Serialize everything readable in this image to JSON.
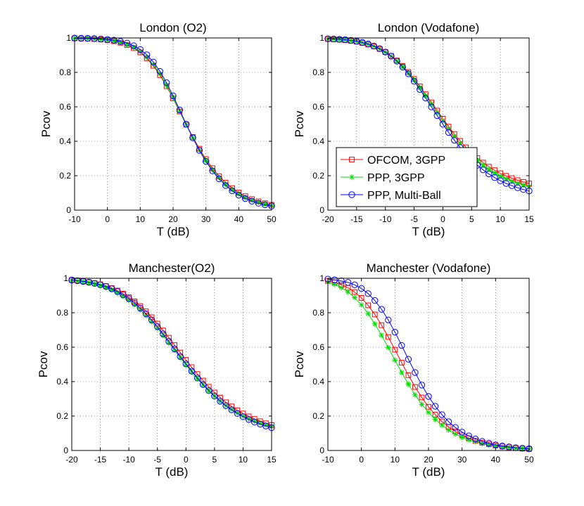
{
  "chart_data": [
    {
      "type": "line",
      "title": "London (O2)",
      "xlabel": "T (dB)",
      "ylabel": "Pcov",
      "xlim": [
        -10,
        50
      ],
      "ylim": [
        0,
        1
      ],
      "xticks": [
        "-10",
        "0",
        "10",
        "20",
        "30",
        "40",
        "50"
      ],
      "yticks": [
        "0",
        "0.2",
        "0.4",
        "0.6",
        "0.8",
        "1"
      ],
      "grid": true,
      "x": [
        -10,
        -8,
        -6,
        -4,
        -2,
        0,
        2,
        4,
        6,
        8,
        10,
        12,
        14,
        16,
        18,
        20,
        22,
        24,
        26,
        28,
        30,
        32,
        34,
        36,
        38,
        40,
        42,
        44,
        46,
        48,
        50
      ],
      "series": [
        {
          "name": "OFCOM, 3GPP",
          "color": "#ff0000",
          "marker": "square",
          "values": [
            0.998,
            0.997,
            0.996,
            0.994,
            0.991,
            0.987,
            0.981,
            0.972,
            0.959,
            0.941,
            0.916,
            0.882,
            0.838,
            0.784,
            0.72,
            0.649,
            0.573,
            0.496,
            0.425,
            0.357,
            0.296,
            0.244,
            0.197,
            0.16,
            0.128,
            0.102,
            0.081,
            0.064,
            0.051,
            0.04,
            0.031
          ]
        },
        {
          "name": "PPP, 3GPP",
          "color": "#00dd00",
          "marker": "asterisk",
          "values": [
            0.998,
            0.997,
            0.996,
            0.994,
            0.991,
            0.987,
            0.982,
            0.974,
            0.962,
            0.945,
            0.921,
            0.888,
            0.845,
            0.791,
            0.726,
            0.653,
            0.575,
            0.496,
            0.42,
            0.35,
            0.288,
            0.234,
            0.188,
            0.15,
            0.118,
            0.093,
            0.073,
            0.057,
            0.045,
            0.035,
            0.027
          ]
        },
        {
          "name": "PPP, Multi-Ball",
          "color": "#0000ff",
          "marker": "circle",
          "values": [
            0.999,
            0.998,
            0.997,
            0.996,
            0.994,
            0.991,
            0.987,
            0.98,
            0.97,
            0.955,
            0.933,
            0.902,
            0.86,
            0.806,
            0.74,
            0.664,
            0.582,
            0.499,
            0.42,
            0.347,
            0.283,
            0.228,
            0.182,
            0.143,
            0.112,
            0.087,
            0.067,
            0.052,
            0.04,
            0.031,
            0.024
          ]
        }
      ]
    },
    {
      "type": "line",
      "title": "London (Vodafone)",
      "xlabel": "T (dB)",
      "ylabel": "Pcov",
      "xlim": [
        -20,
        15
      ],
      "ylim": [
        0,
        1
      ],
      "xticks": [
        "-20",
        "-15",
        "-10",
        "-5",
        "0",
        "5",
        "10",
        "15"
      ],
      "yticks": [
        "0",
        "0.2",
        "0.4",
        "0.6",
        "0.8",
        "1"
      ],
      "grid": true,
      "legend": "center-left",
      "x": [
        -20,
        -19,
        -18,
        -17,
        -16,
        -15,
        -14,
        -13,
        -12,
        -11,
        -10,
        -9,
        -8,
        -7,
        -6,
        -5,
        -4,
        -3,
        -2,
        -1,
        0,
        1,
        2,
        3,
        4,
        5,
        6,
        7,
        8,
        9,
        10,
        11,
        12,
        13,
        14,
        15
      ],
      "series": [
        {
          "name": "OFCOM, 3GPP",
          "color": "#ff0000",
          "marker": "square",
          "values": [
            0.994,
            0.992,
            0.99,
            0.987,
            0.983,
            0.978,
            0.971,
            0.962,
            0.951,
            0.936,
            0.918,
            0.896,
            0.869,
            0.838,
            0.802,
            0.762,
            0.719,
            0.673,
            0.626,
            0.578,
            0.531,
            0.485,
            0.442,
            0.402,
            0.365,
            0.332,
            0.302,
            0.276,
            0.252,
            0.232,
            0.214,
            0.199,
            0.186,
            0.174,
            0.164,
            0.155
          ]
        },
        {
          "name": "PPP, 3GPP",
          "color": "#00dd00",
          "marker": "asterisk",
          "values": [
            0.994,
            0.993,
            0.991,
            0.988,
            0.984,
            0.979,
            0.972,
            0.963,
            0.951,
            0.936,
            0.917,
            0.894,
            0.866,
            0.834,
            0.797,
            0.756,
            0.711,
            0.664,
            0.616,
            0.567,
            0.519,
            0.473,
            0.429,
            0.389,
            0.352,
            0.318,
            0.288,
            0.261,
            0.237,
            0.216,
            0.198,
            0.182,
            0.168,
            0.156,
            0.146,
            0.137
          ]
        },
        {
          "name": "PPP, Multi-Ball",
          "color": "#0000ff",
          "marker": "circle",
          "values": [
            0.995,
            0.994,
            0.992,
            0.99,
            0.986,
            0.981,
            0.974,
            0.965,
            0.953,
            0.938,
            0.918,
            0.894,
            0.865,
            0.831,
            0.792,
            0.748,
            0.701,
            0.651,
            0.6,
            0.549,
            0.499,
            0.451,
            0.406,
            0.364,
            0.326,
            0.292,
            0.261,
            0.234,
            0.21,
            0.189,
            0.171,
            0.155,
            0.142,
            0.13,
            0.12,
            0.111
          ]
        }
      ]
    },
    {
      "type": "line",
      "title": "Manchester(O2)",
      "xlabel": "T (dB)",
      "ylabel": "Pcov",
      "xlim": [
        -20,
        15
      ],
      "ylim": [
        0,
        1
      ],
      "xticks": [
        "-20",
        "-15",
        "-10",
        "-5",
        "0",
        "5",
        "10",
        "15"
      ],
      "yticks": [
        "0",
        "0.2",
        "0.4",
        "0.6",
        "0.8",
        "1"
      ],
      "grid": true,
      "x": [
        -20,
        -19,
        -18,
        -17,
        -16,
        -15,
        -14,
        -13,
        -12,
        -11,
        -10,
        -9,
        -8,
        -7,
        -6,
        -5,
        -4,
        -3,
        -2,
        -1,
        0,
        1,
        2,
        3,
        4,
        5,
        6,
        7,
        8,
        9,
        10,
        11,
        12,
        13,
        14,
        15
      ],
      "series": [
        {
          "name": "OFCOM, 3GPP",
          "color": "#ff0000",
          "marker": "square",
          "values": [
            0.99,
            0.987,
            0.983,
            0.978,
            0.972,
            0.965,
            0.955,
            0.943,
            0.929,
            0.911,
            0.89,
            0.866,
            0.839,
            0.808,
            0.774,
            0.737,
            0.697,
            0.655,
            0.612,
            0.569,
            0.526,
            0.484,
            0.444,
            0.406,
            0.37,
            0.337,
            0.307,
            0.28,
            0.256,
            0.234,
            0.215,
            0.198,
            0.183,
            0.17,
            0.158,
            0.148
          ]
        },
        {
          "name": "PPP, 3GPP",
          "color": "#00dd00",
          "marker": "asterisk",
          "values": [
            0.988,
            0.984,
            0.98,
            0.974,
            0.967,
            0.958,
            0.947,
            0.933,
            0.916,
            0.896,
            0.873,
            0.847,
            0.817,
            0.784,
            0.748,
            0.709,
            0.668,
            0.625,
            0.582,
            0.539,
            0.497,
            0.456,
            0.417,
            0.38,
            0.346,
            0.315,
            0.286,
            0.261,
            0.238,
            0.218,
            0.2,
            0.184,
            0.171,
            0.158,
            0.148,
            0.138
          ]
        },
        {
          "name": "PPP, Multi-Ball",
          "color": "#0000ff",
          "marker": "circle",
          "values": [
            0.99,
            0.986,
            0.982,
            0.977,
            0.97,
            0.962,
            0.952,
            0.939,
            0.923,
            0.904,
            0.882,
            0.856,
            0.827,
            0.794,
            0.758,
            0.719,
            0.677,
            0.634,
            0.59,
            0.546,
            0.503,
            0.461,
            0.421,
            0.383,
            0.348,
            0.316,
            0.286,
            0.26,
            0.236,
            0.215,
            0.196,
            0.18,
            0.165,
            0.153,
            0.142,
            0.132
          ]
        }
      ]
    },
    {
      "type": "line",
      "title": "Manchester (Vodafone)",
      "xlabel": "T (dB)",
      "ylabel": "Pcov",
      "xlim": [
        -10,
        50
      ],
      "ylim": [
        0,
        1
      ],
      "xticks": [
        "-10",
        "0",
        "10",
        "20",
        "30",
        "40",
        "50"
      ],
      "yticks": [
        "0",
        "0.2",
        "0.4",
        "0.6",
        "0.8",
        "1"
      ],
      "grid": true,
      "x": [
        -10,
        -8,
        -6,
        -4,
        -2,
        0,
        2,
        4,
        6,
        8,
        10,
        12,
        14,
        16,
        18,
        20,
        22,
        24,
        26,
        28,
        30,
        32,
        34,
        36,
        38,
        40,
        42,
        44,
        46,
        48,
        50
      ],
      "series": [
        {
          "name": "OFCOM, 3GPP",
          "color": "#ff0000",
          "marker": "square",
          "values": [
            0.985,
            0.976,
            0.963,
            0.945,
            0.92,
            0.886,
            0.843,
            0.79,
            0.728,
            0.659,
            0.585,
            0.51,
            0.437,
            0.369,
            0.308,
            0.254,
            0.208,
            0.169,
            0.137,
            0.11,
            0.088,
            0.071,
            0.057,
            0.045,
            0.036,
            0.029,
            0.023,
            0.018,
            0.014,
            0.011,
            0.009
          ]
        },
        {
          "name": "PPP, 3GPP",
          "color": "#00dd00",
          "marker": "asterisk",
          "values": [
            0.978,
            0.965,
            0.946,
            0.921,
            0.888,
            0.846,
            0.795,
            0.735,
            0.669,
            0.598,
            0.525,
            0.453,
            0.385,
            0.323,
            0.268,
            0.221,
            0.181,
            0.147,
            0.119,
            0.096,
            0.077,
            0.062,
            0.05,
            0.04,
            0.032,
            0.025,
            0.02,
            0.016,
            0.013,
            0.01,
            0.008
          ]
        },
        {
          "name": "PPP, Multi-Ball",
          "color": "#0000ff",
          "marker": "circle",
          "values": [
            0.995,
            0.991,
            0.985,
            0.976,
            0.962,
            0.941,
            0.911,
            0.871,
            0.82,
            0.758,
            0.687,
            0.61,
            0.53,
            0.453,
            0.38,
            0.314,
            0.257,
            0.208,
            0.167,
            0.134,
            0.107,
            0.085,
            0.067,
            0.053,
            0.042,
            0.033,
            0.026,
            0.021,
            0.016,
            0.013,
            0.01
          ]
        }
      ]
    }
  ]
}
